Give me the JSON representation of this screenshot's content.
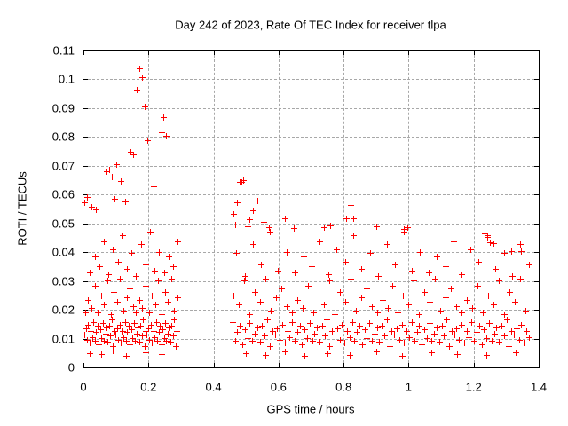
{
  "chart_data": {
    "type": "scatter",
    "title": "Day 242 of 2023, Rate Of TEC Index for receiver tlpa",
    "xlabel": "GPS time / hours",
    "ylabel": "ROTI / TECUs",
    "xlim": [
      0,
      1.4
    ],
    "ylim": [
      0,
      0.11
    ],
    "xticks": [
      0,
      0.2,
      0.4,
      0.6,
      0.8,
      1,
      1.2,
      1.4
    ],
    "xtick_labels": [
      "0",
      "0.2",
      "0.4",
      "0.6",
      "0.8",
      "1",
      "1.2",
      "1.4"
    ],
    "yticks": [
      0,
      0.01,
      0.02,
      0.03,
      0.04,
      0.05,
      0.06,
      0.07,
      0.08,
      0.09,
      0.1,
      0.11
    ],
    "ytick_labels": [
      "0",
      "0.01",
      "0.02",
      "0.03",
      "0.04",
      "0.05",
      "0.06",
      "0.07",
      "0.08",
      "0.09",
      "0.1",
      "0.11"
    ],
    "grid": true,
    "legend_position": "none",
    "marker": "plus",
    "colors": {
      "points": "#ff0000",
      "grid": "#a8a8a8",
      "axis": "#000000",
      "text": "#000000",
      "background": "#ffffff"
    },
    "series": [
      {
        "name": "ROTI",
        "x": [
          0.003,
          0.007,
          0.011,
          0.015,
          0.019,
          0.023,
          0.027,
          0.031,
          0.035,
          0.039,
          0.043,
          0.047,
          0.051,
          0.055,
          0.059,
          0.063,
          0.067,
          0.071,
          0.075,
          0.079,
          0.083,
          0.087,
          0.091,
          0.095,
          0.099,
          0.103,
          0.107,
          0.111,
          0.115,
          0.119,
          0.123,
          0.127,
          0.131,
          0.135,
          0.139,
          0.143,
          0.147,
          0.151,
          0.155,
          0.159,
          0.163,
          0.167,
          0.171,
          0.175,
          0.179,
          0.183,
          0.187,
          0.191,
          0.195,
          0.199,
          0.203,
          0.207,
          0.211,
          0.215,
          0.219,
          0.223,
          0.227,
          0.231,
          0.235,
          0.239,
          0.243,
          0.247,
          0.251,
          0.255,
          0.259,
          0.263,
          0.267,
          0.271,
          0.275,
          0.279,
          0.283,
          0.287,
          0.005,
          0.0148,
          0.0246,
          0.0344,
          0.0442,
          0.054,
          0.0638,
          0.0736,
          0.0834,
          0.0932,
          0.103,
          0.1128,
          0.1226,
          0.1324,
          0.1422,
          0.152,
          0.1618,
          0.1716,
          0.1814,
          0.1912,
          0.201,
          0.2108,
          0.2206,
          0.2304,
          0.2402,
          0.25,
          0.2598,
          0.2696,
          0.2794,
          0.2892,
          0.02,
          0.0342,
          0.0484,
          0.0626,
          0.0768,
          0.091,
          0.1052,
          0.1194,
          0.1336,
          0.1478,
          0.162,
          0.1762,
          0.1904,
          0.2046,
          0.2188,
          0.233,
          0.2472,
          0.2614,
          0.2756,
          0.2898,
          0.02,
          0.055,
          0.09,
          0.13,
          0.19,
          0.24,
          0.003,
          0.01,
          0.024,
          0.038,
          0.072,
          0.08,
          0.088,
          0.095,
          0.1,
          0.115,
          0.128,
          0.146,
          0.153,
          0.165,
          0.172,
          0.18,
          0.189,
          0.196,
          0.215,
          0.24,
          0.246,
          0.253,
          0.458,
          0.4657,
          0.4733,
          0.481,
          0.4886,
          0.4963,
          0.504,
          0.5116,
          0.5193,
          0.5269,
          0.5346,
          0.5423,
          0.5499,
          0.5576,
          0.5652,
          0.5729,
          0.5806,
          0.5882,
          0.5959,
          0.6035,
          0.6112,
          0.6189,
          0.6265,
          0.6342,
          0.6418,
          0.6495,
          0.6572,
          0.6648,
          0.6725,
          0.6801,
          0.6878,
          0.6955,
          0.7031,
          0.7108,
          0.7184,
          0.7261,
          0.7338,
          0.7414,
          0.7491,
          0.7567,
          0.7644,
          0.7721,
          0.7797,
          0.7874,
          0.795,
          0.8027,
          0.8104,
          0.818,
          0.8257,
          0.8333,
          0.841,
          0.8487,
          0.8563,
          0.864,
          0.8716,
          0.8793,
          0.887,
          0.8946,
          0.9023,
          0.9099,
          0.9176,
          0.9253,
          0.9329,
          0.9406,
          0.9482,
          0.9559,
          0.9636,
          0.9712,
          0.9789,
          0.9865,
          0.9942,
          1.0019,
          1.0095,
          1.0172,
          1.0248,
          1.0325,
          1.0402,
          1.0478,
          1.0555,
          1.0631,
          1.0708,
          1.0785,
          1.0861,
          1.0938,
          1.1014,
          1.1091,
          1.1168,
          1.1244,
          1.1321,
          1.1397,
          1.1474,
          1.1551,
          1.1627,
          1.1704,
          1.178,
          1.1857,
          1.1934,
          1.201,
          1.2087,
          1.2163,
          1.224,
          1.2317,
          1.2393,
          1.247,
          1.2546,
          1.2623,
          1.27,
          1.2776,
          1.2853,
          1.2929,
          1.3006,
          1.3083,
          1.3159,
          1.3236,
          1.3312,
          1.3389,
          1.3466,
          1.3542,
          1.3619,
          1.3695,
          0.462,
          0.4783,
          0.4946,
          0.5109,
          0.5272,
          0.5435,
          0.5598,
          0.5761,
          0.5924,
          0.6087,
          0.625,
          0.6413,
          0.6576,
          0.6739,
          0.6902,
          0.7065,
          0.7228,
          0.7391,
          0.7554,
          0.7717,
          0.788,
          0.8043,
          0.8206,
          0.8369,
          0.8532,
          0.8695,
          0.8858,
          0.9021,
          0.9184,
          0.9347,
          0.951,
          0.9673,
          0.9836,
          0.9999,
          1.0162,
          1.0325,
          1.0488,
          1.0651,
          1.0814,
          1.0977,
          1.114,
          1.1303,
          1.1466,
          1.1629,
          1.1792,
          1.1955,
          1.2118,
          1.2281,
          1.2444,
          1.2607,
          1.277,
          1.2933,
          1.3096,
          1.3259,
          1.3422,
          1.3585,
          0.47,
          0.4957,
          0.5214,
          0.5471,
          0.5728,
          0.5985,
          0.6242,
          0.6499,
          0.6756,
          0.7013,
          0.727,
          0.7527,
          0.7784,
          0.8041,
          0.8298,
          0.8555,
          0.8812,
          0.9069,
          0.9326,
          0.9583,
          0.984,
          1.0097,
          1.0354,
          1.0611,
          1.0868,
          1.1125,
          1.1382,
          1.1639,
          1.1896,
          1.2153,
          1.241,
          1.2667,
          1.2924,
          1.3181,
          1.3438,
          1.3695,
          0.5,
          0.56,
          0.62,
          0.68,
          0.75,
          0.82,
          0.9,
          0.98,
          1.07,
          1.15,
          1.24,
          1.33,
          0.462,
          0.467,
          0.473,
          0.48,
          0.486,
          0.491,
          0.505,
          0.511,
          0.522,
          0.536,
          0.553,
          0.57,
          0.62,
          0.648,
          0.74,
          0.76,
          0.807,
          0.821,
          0.829,
          0.9,
          0.984,
          0.995,
          1.234,
          1.242,
          1.25,
          1.261,
          1.315,
          1.345
        ],
        "y": [
          0.0115,
          0.0136,
          0.0097,
          0.0149,
          0.0085,
          0.0127,
          0.0106,
          0.0157,
          0.0091,
          0.0122,
          0.0144,
          0.0079,
          0.0132,
          0.0101,
          0.0154,
          0.0093,
          0.0118,
          0.0139,
          0.0088,
          0.0146,
          0.011,
          0.0165,
          0.0073,
          0.0125,
          0.0115,
          0.0136,
          0.0097,
          0.0149,
          0.0085,
          0.0127,
          0.0106,
          0.0157,
          0.0091,
          0.0122,
          0.0144,
          0.0079,
          0.0132,
          0.0101,
          0.0154,
          0.0093,
          0.0118,
          0.0139,
          0.0088,
          0.0146,
          0.011,
          0.0165,
          0.0073,
          0.0125,
          0.0115,
          0.0136,
          0.0097,
          0.0149,
          0.0085,
          0.0127,
          0.0106,
          0.0157,
          0.0091,
          0.0122,
          0.0144,
          0.0079,
          0.0132,
          0.0101,
          0.0154,
          0.0093,
          0.0118,
          0.0139,
          0.0088,
          0.0146,
          0.011,
          0.0165,
          0.0073,
          0.0125,
          0.019,
          0.0235,
          0.0205,
          0.0282,
          0.0192,
          0.0251,
          0.0218,
          0.0301,
          0.0184,
          0.0262,
          0.0227,
          0.0308,
          0.0198,
          0.0243,
          0.0273,
          0.0212,
          0.019,
          0.0235,
          0.0205,
          0.0282,
          0.0192,
          0.0251,
          0.0218,
          0.0301,
          0.0184,
          0.0262,
          0.0227,
          0.0308,
          0.0198,
          0.0243,
          0.033,
          0.0385,
          0.0352,
          0.0438,
          0.0322,
          0.041,
          0.0366,
          0.0458,
          0.0341,
          0.0396,
          0.0318,
          0.0429,
          0.0357,
          0.0472,
          0.0335,
          0.0402,
          0.033,
          0.0385,
          0.0352,
          0.0438,
          0.005,
          0.0045,
          0.0058,
          0.004,
          0.0052,
          0.0047,
          0.0573,
          0.0592,
          0.0558,
          0.0549,
          0.068,
          0.0686,
          0.0664,
          0.0585,
          0.0705,
          0.0648,
          0.0576,
          0.0749,
          0.074,
          0.0965,
          0.1039,
          0.1008,
          0.0907,
          0.0788,
          0.0628,
          0.0815,
          0.087,
          0.0803,
          0.0157,
          0.0091,
          0.0122,
          0.0144,
          0.0079,
          0.0132,
          0.0101,
          0.0154,
          0.0093,
          0.0118,
          0.0139,
          0.0088,
          0.0146,
          0.011,
          0.0165,
          0.0073,
          0.0125,
          0.0115,
          0.0136,
          0.0097,
          0.0149,
          0.0085,
          0.0127,
          0.0106,
          0.0157,
          0.0091,
          0.0122,
          0.0144,
          0.0079,
          0.0132,
          0.0101,
          0.0154,
          0.0093,
          0.0118,
          0.0139,
          0.0088,
          0.0146,
          0.011,
          0.0165,
          0.0073,
          0.0125,
          0.0115,
          0.0136,
          0.0097,
          0.0149,
          0.0085,
          0.0127,
          0.0106,
          0.0157,
          0.0091,
          0.0122,
          0.0144,
          0.0079,
          0.0132,
          0.0101,
          0.0154,
          0.0093,
          0.0118,
          0.0139,
          0.0088,
          0.0146,
          0.011,
          0.0165,
          0.0073,
          0.0125,
          0.0115,
          0.0136,
          0.0097,
          0.0149,
          0.0085,
          0.0127,
          0.0106,
          0.0157,
          0.0091,
          0.0122,
          0.0144,
          0.0079,
          0.0132,
          0.0101,
          0.0154,
          0.0093,
          0.0118,
          0.0139,
          0.0088,
          0.0146,
          0.011,
          0.0165,
          0.0073,
          0.0125,
          0.0115,
          0.0136,
          0.0097,
          0.0149,
          0.0085,
          0.0127,
          0.0106,
          0.0157,
          0.0091,
          0.0122,
          0.0144,
          0.0079,
          0.0132,
          0.0101,
          0.0154,
          0.0093,
          0.0118,
          0.0139,
          0.0088,
          0.0146,
          0.011,
          0.0165,
          0.0073,
          0.0125,
          0.0115,
          0.0136,
          0.0097,
          0.0149,
          0.0085,
          0.0127,
          0.0106,
          0.0251,
          0.0218,
          0.0301,
          0.0184,
          0.0262,
          0.0227,
          0.0308,
          0.0198,
          0.0243,
          0.0273,
          0.0212,
          0.019,
          0.0235,
          0.0205,
          0.0282,
          0.0192,
          0.0251,
          0.0218,
          0.0301,
          0.0184,
          0.0262,
          0.0227,
          0.0308,
          0.0198,
          0.0243,
          0.0273,
          0.0212,
          0.019,
          0.0235,
          0.0205,
          0.0282,
          0.0192,
          0.0251,
          0.0218,
          0.0301,
          0.0184,
          0.0262,
          0.0227,
          0.0308,
          0.0198,
          0.0243,
          0.0273,
          0.0212,
          0.019,
          0.0235,
          0.0205,
          0.0282,
          0.0192,
          0.0251,
          0.0218,
          0.0301,
          0.0184,
          0.0262,
          0.0227,
          0.0308,
          0.0198,
          0.0396,
          0.0318,
          0.0429,
          0.0357,
          0.0472,
          0.0335,
          0.0402,
          0.033,
          0.0385,
          0.0352,
          0.0438,
          0.0322,
          0.041,
          0.0366,
          0.0458,
          0.0341,
          0.0396,
          0.0318,
          0.0429,
          0.0357,
          0.0472,
          0.0335,
          0.0402,
          0.033,
          0.0385,
          0.0352,
          0.0438,
          0.0322,
          0.041,
          0.0366,
          0.0458,
          0.0341,
          0.0396,
          0.0318,
          0.0429,
          0.0357,
          0.0048,
          0.0042,
          0.0055,
          0.0039,
          0.005,
          0.0044,
          0.0057,
          0.0041,
          0.0052,
          0.0046,
          0.0043,
          0.0053,
          0.0533,
          0.0495,
          0.0573,
          0.0645,
          0.0643,
          0.065,
          0.049,
          0.0515,
          0.0545,
          0.0579,
          0.0505,
          0.0488,
          0.0519,
          0.0483,
          0.0487,
          0.0492,
          0.0518,
          0.0564,
          0.0518,
          0.0489,
          0.0481,
          0.0487,
          0.0466,
          0.0452,
          0.0435,
          0.0432,
          0.0404,
          0.0404
        ]
      }
    ]
  }
}
